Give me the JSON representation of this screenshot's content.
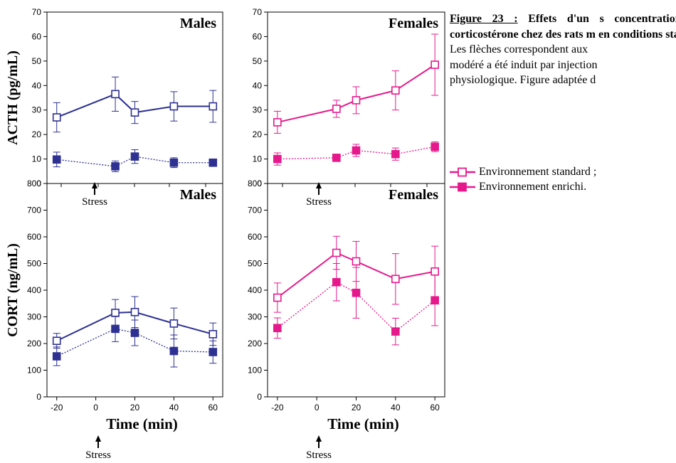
{
  "caption": {
    "figure_number": "Figure 23 :",
    "bold_text": "Effets d'un s concentrations plasmatique corticostérone chez des rats m en conditions standard ou en e",
    "normal_lines": [
      "Les flèches correspondent aux",
      "modéré a été induit par injection",
      "physiologique. Figure adaptée d"
    ]
  },
  "legend": {
    "standard": "Environnement standard ;",
    "enriched": "Environnement enrichi."
  },
  "colors": {
    "males": "#2e3192",
    "females": "#e6198c"
  },
  "x_axis_label": "Time (min)",
  "stress_label": "Stress",
  "chart_data": [
    {
      "type": "line",
      "panel": "acth-males",
      "title": "Males",
      "ylabel": "ACTH (pg/mL)",
      "xlabel": "",
      "x": [
        -20,
        10,
        20,
        40,
        60
      ],
      "xlim": [
        -25,
        65
      ],
      "xticks": [],
      "ylim": [
        0,
        70
      ],
      "yticks": [
        0,
        10,
        20,
        30,
        40,
        50,
        60,
        70
      ],
      "series": [
        {
          "legend": "standard",
          "values": [
            27,
            36.5,
            29,
            31.5,
            31.5
          ],
          "errors": [
            6,
            7,
            4.5,
            6,
            6.5
          ]
        },
        {
          "legend": "enriched",
          "values": [
            9.8,
            7,
            11,
            8.5,
            8.5
          ],
          "errors": [
            3,
            2.2,
            2.8,
            2,
            1.5
          ]
        }
      ]
    },
    {
      "type": "line",
      "panel": "acth-females",
      "title": "Females",
      "ylabel": "",
      "xlabel": "",
      "x": [
        -20,
        10,
        20,
        40,
        60
      ],
      "xlim": [
        -25,
        65
      ],
      "xticks": [],
      "ylim": [
        0,
        70
      ],
      "yticks": [
        0,
        10,
        20,
        30,
        40,
        50,
        60,
        70
      ],
      "series": [
        {
          "legend": "standard",
          "values": [
            25,
            30.5,
            34,
            38,
            48.5
          ],
          "errors": [
            4.5,
            3.5,
            5.5,
            8,
            12.5
          ]
        },
        {
          "legend": "enriched",
          "values": [
            10,
            10.5,
            13.5,
            12,
            15
          ],
          "errors": [
            2.5,
            1.2,
            2.5,
            2.5,
            2
          ]
        }
      ]
    },
    {
      "type": "line",
      "panel": "cort-males",
      "title": "Males",
      "ylabel": "CORT (ng/mL)",
      "xlabel": "Time (min)",
      "x": [
        -20,
        10,
        20,
        40,
        60
      ],
      "xlim": [
        -25,
        65
      ],
      "xticks": [
        -20,
        0,
        20,
        40,
        60
      ],
      "ylim": [
        0,
        800
      ],
      "yticks": [
        0,
        100,
        200,
        300,
        400,
        500,
        600,
        700,
        800
      ],
      "series": [
        {
          "legend": "standard",
          "values": [
            210,
            315,
            318,
            275,
            235
          ],
          "errors": [
            28,
            50,
            58,
            58,
            42
          ]
        },
        {
          "legend": "enriched",
          "values": [
            152,
            255,
            240,
            172,
            168
          ],
          "errors": [
            35,
            48,
            48,
            60,
            42
          ]
        }
      ]
    },
    {
      "type": "line",
      "panel": "cort-females",
      "title": "Females",
      "ylabel": "",
      "xlabel": "Time (min)",
      "x": [
        -20,
        10,
        20,
        40,
        60
      ],
      "xlim": [
        -25,
        65
      ],
      "xticks": [
        -20,
        0,
        20,
        40,
        60
      ],
      "ylim": [
        0,
        800
      ],
      "yticks": [
        0,
        100,
        200,
        300,
        400,
        500,
        600,
        700,
        800
      ],
      "series": [
        {
          "legend": "standard",
          "values": [
            372,
            540,
            508,
            442,
            470
          ],
          "errors": [
            55,
            62,
            75,
            95,
            95
          ]
        },
        {
          "legend": "enriched",
          "values": [
            258,
            430,
            390,
            245,
            362
          ],
          "errors": [
            38,
            70,
            95,
            50,
            95
          ]
        }
      ]
    }
  ]
}
